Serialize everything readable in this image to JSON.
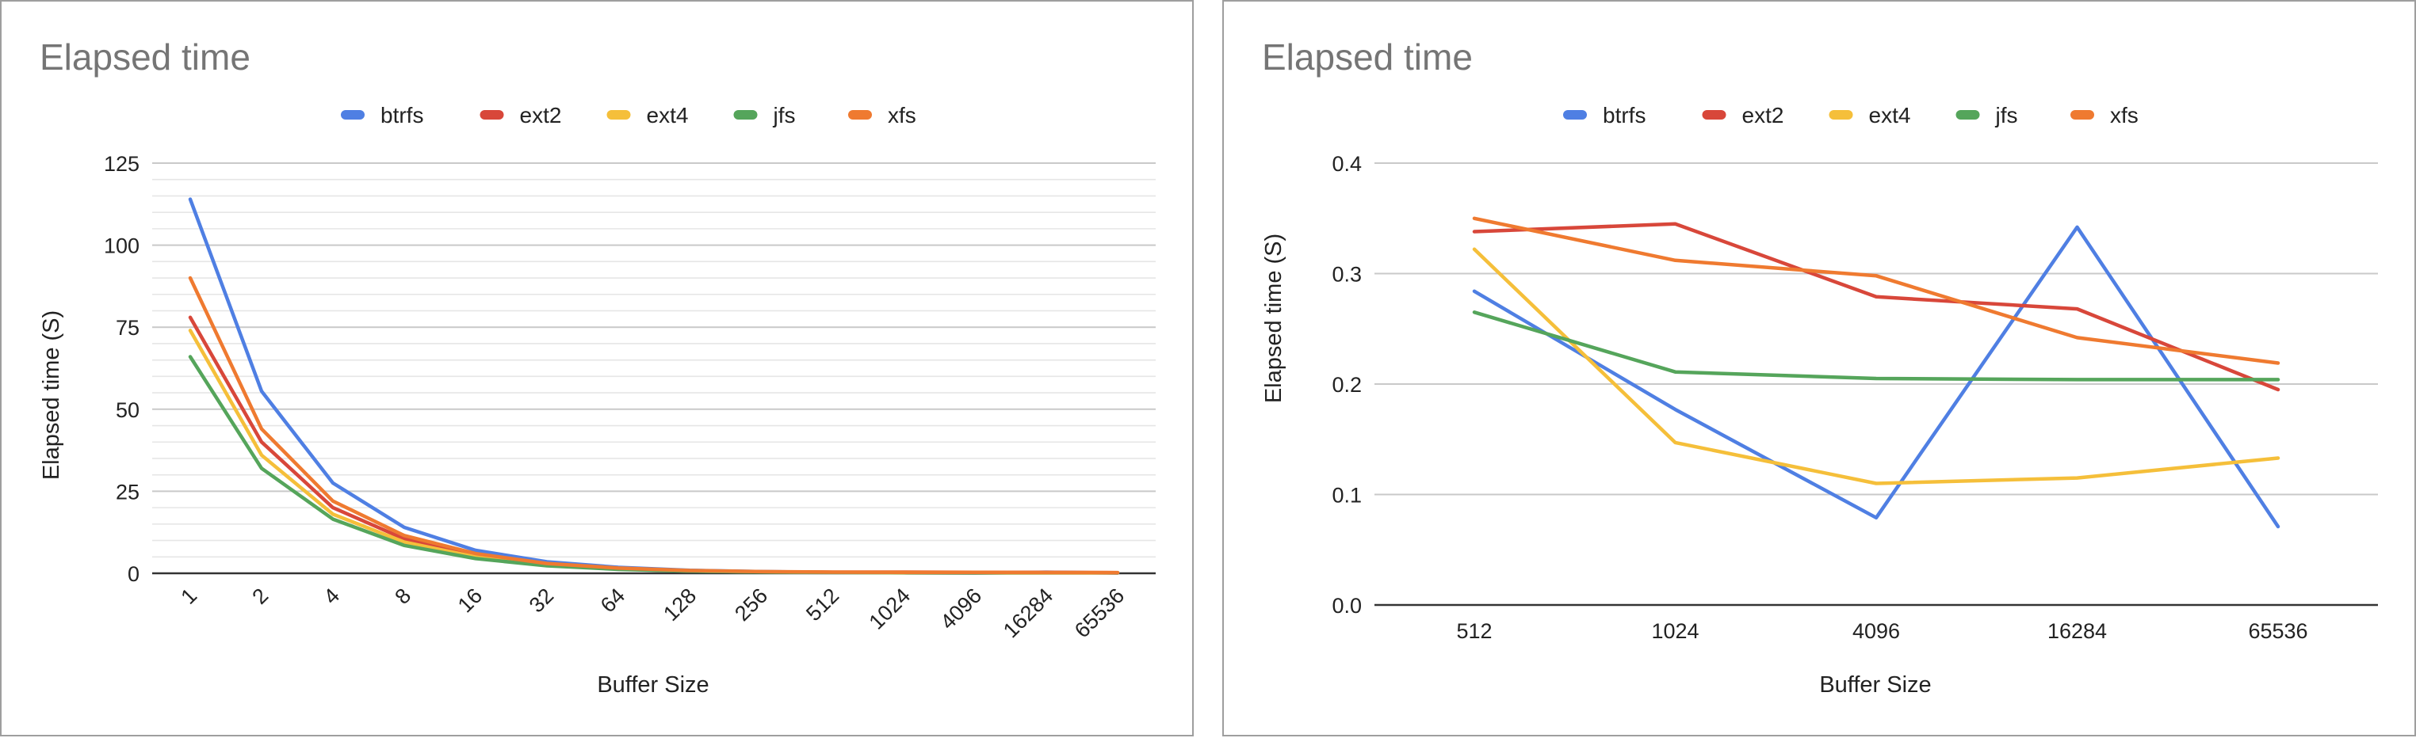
{
  "colors": {
    "btrfs": "#4f7fe3",
    "ext2": "#d8473a",
    "ext4": "#f5bf3a",
    "jfs": "#55a55b",
    "xfs": "#ef7a30",
    "grid_major": "#c9c9c9",
    "grid_minor": "#e6e6e6",
    "axis": "#333333"
  },
  "chart_data": [
    {
      "type": "line",
      "title": "Elapsed time",
      "xlabel": "Buffer Size",
      "ylabel": "Elapsed time (S)",
      "categories": [
        "1",
        "2",
        "4",
        "8",
        "16",
        "32",
        "64",
        "128",
        "256",
        "512",
        "1024",
        "4096",
        "16284",
        "65536"
      ],
      "ylim": [
        0,
        125
      ],
      "yticks": [
        "0",
        "25",
        "50",
        "75",
        "100",
        "125"
      ],
      "grid": true,
      "minor_grid": true,
      "legend_position": "top",
      "series": [
        {
          "name": "btrfs",
          "values": [
            114,
            55.5,
            27.5,
            14,
            7,
            3.5,
            1.8,
            0.9,
            0.5,
            0.28,
            0.17,
            0.08,
            0.34,
            0.07
          ]
        },
        {
          "name": "ext2",
          "values": [
            78,
            40,
            20,
            10.5,
            5.5,
            2.8,
            1.5,
            0.8,
            0.45,
            0.34,
            0.35,
            0.28,
            0.27,
            0.2
          ]
        },
        {
          "name": "ext4",
          "values": [
            74,
            36,
            18,
            9.5,
            5,
            2.5,
            1.3,
            0.7,
            0.4,
            0.32,
            0.15,
            0.11,
            0.12,
            0.13
          ]
        },
        {
          "name": "jfs",
          "values": [
            66,
            32,
            16.5,
            8.5,
            4.5,
            2.3,
            1.2,
            0.65,
            0.38,
            0.26,
            0.21,
            0.2,
            0.2,
            0.2
          ]
        },
        {
          "name": "xfs",
          "values": [
            90,
            44,
            22,
            11.5,
            6,
            3,
            1.6,
            0.85,
            0.5,
            0.35,
            0.31,
            0.3,
            0.24,
            0.22
          ]
        }
      ]
    },
    {
      "type": "line",
      "title": "Elapsed time",
      "xlabel": "Buffer Size",
      "ylabel": "Elapsed time (S)",
      "categories": [
        "512",
        "1024",
        "4096",
        "16284",
        "65536"
      ],
      "ylim": [
        0,
        0.4
      ],
      "yticks": [
        "0.0",
        "0.1",
        "0.2",
        "0.3",
        "0.4"
      ],
      "grid": true,
      "minor_grid": false,
      "legend_position": "top",
      "series": [
        {
          "name": "btrfs",
          "values": [
            0.284,
            0.177,
            0.079,
            0.342,
            0.071
          ]
        },
        {
          "name": "ext2",
          "values": [
            0.338,
            0.345,
            0.279,
            0.268,
            0.195
          ]
        },
        {
          "name": "ext4",
          "values": [
            0.322,
            0.147,
            0.11,
            0.115,
            0.133
          ]
        },
        {
          "name": "jfs",
          "values": [
            0.265,
            0.211,
            0.205,
            0.204,
            0.204
          ]
        },
        {
          "name": "xfs",
          "values": [
            0.35,
            0.312,
            0.298,
            0.242,
            0.219
          ]
        }
      ]
    }
  ]
}
